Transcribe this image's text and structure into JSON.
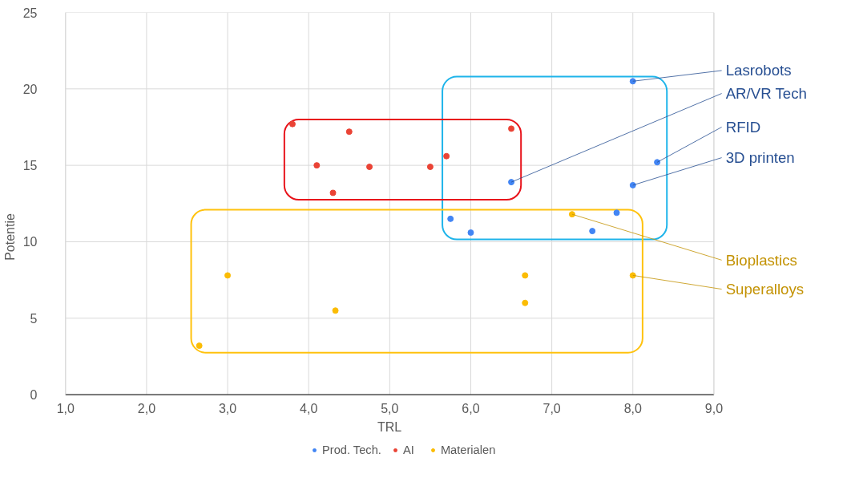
{
  "chart_data": {
    "type": "scatter",
    "xlabel": "TRL",
    "ylabel": "Potentie",
    "xlim": [
      1,
      9
    ],
    "ylim": [
      0,
      25
    ],
    "xticks": [
      {
        "value": 1,
        "label": "1,0"
      },
      {
        "value": 2,
        "label": "2,0"
      },
      {
        "value": 3,
        "label": "3,0"
      },
      {
        "value": 4,
        "label": "4,0"
      },
      {
        "value": 5,
        "label": "5,0"
      },
      {
        "value": 6,
        "label": "6,0"
      },
      {
        "value": 7,
        "label": "7,0"
      },
      {
        "value": 8,
        "label": "8,0"
      },
      {
        "value": 9,
        "label": "9,0"
      }
    ],
    "yticks": [
      0,
      5,
      10,
      15,
      20,
      25
    ],
    "grid": true,
    "legend": "bottom",
    "marker": "circle",
    "series": [
      {
        "name": "Prod. Tech.",
        "color": "#4285f4",
        "x": [
          8.0,
          8.3,
          8.0,
          6.5,
          5.75,
          6.0,
          7.5,
          7.8
        ],
        "values": [
          20.5,
          15.2,
          13.7,
          13.9,
          11.5,
          10.6,
          10.7,
          11.9
        ]
      },
      {
        "name": "AI",
        "color": "#ea4335",
        "x": [
          3.8,
          4.5,
          4.1,
          4.75,
          5.5,
          5.7,
          6.5,
          4.3
        ],
        "values": [
          17.7,
          17.2,
          15.0,
          14.9,
          14.9,
          15.6,
          17.4,
          13.2
        ]
      },
      {
        "name": "Materialen",
        "color": "#fbbc04",
        "x": [
          3.0,
          2.65,
          4.33,
          6.67,
          6.67,
          7.25,
          8.0
        ],
        "values": [
          7.8,
          3.2,
          5.5,
          7.8,
          6.0,
          11.8,
          7.8
        ]
      }
    ],
    "annotations": [
      {
        "text": "Lasrobots",
        "x": 8.0,
        "y": 20.5
      },
      {
        "text": "AR/VR Tech",
        "x": 6.5,
        "y": 13.9
      },
      {
        "text": "RFID",
        "x": 8.3,
        "y": 15.2
      },
      {
        "text": "3D printen",
        "x": 8.0,
        "y": 13.7
      },
      {
        "text": "Bioplastics",
        "x": 7.25,
        "y": 11.8
      },
      {
        "text": "Superalloys",
        "x": 8.0,
        "y": 7.8
      }
    ]
  }
}
